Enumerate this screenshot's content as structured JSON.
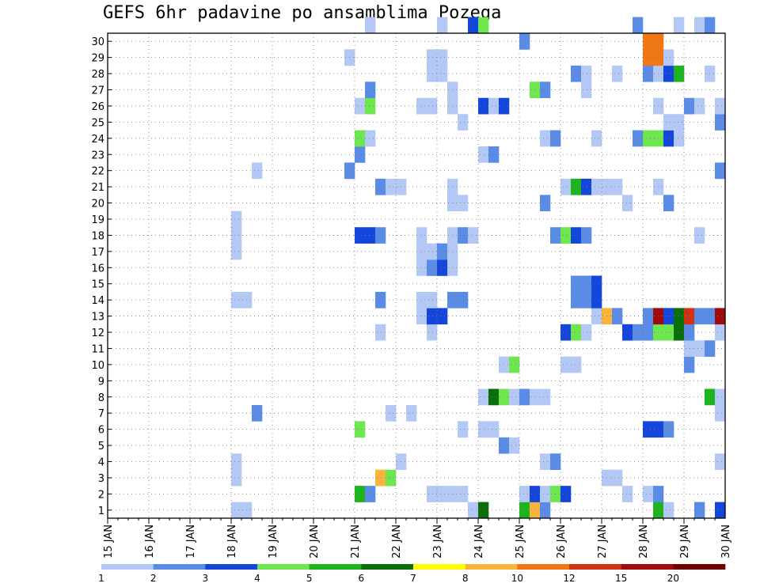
{
  "chart_data": {
    "type": "heatmap",
    "title": "GEFS 6hr padavine po ansamblima Pozega",
    "xlabel": "",
    "ylabel": "",
    "x_tick_labels": [
      "15 JAN",
      "16 JAN",
      "17 JAN",
      "18 JAN",
      "19 JAN",
      "20 JAN",
      "21 JAN",
      "22 JAN",
      "23 JAN",
      "24 JAN",
      "25 JAN",
      "26 JAN",
      "27 JAN",
      "28 JAN",
      "29 JAN",
      "30 JAN"
    ],
    "y_tick_labels": [
      "1",
      "2",
      "3",
      "4",
      "5",
      "6",
      "7",
      "8",
      "9",
      "10",
      "11",
      "12",
      "13",
      "14",
      "15",
      "16",
      "17",
      "18",
      "19",
      "20",
      "21",
      "22",
      "23",
      "24",
      "25",
      "26",
      "27",
      "28",
      "29",
      "30"
    ],
    "grid": true,
    "legend_position": "bottom",
    "colorbar": {
      "labels": [
        "1",
        "2",
        "3",
        "4",
        "5",
        "6",
        "7",
        "8",
        "10",
        "12",
        "15",
        "20"
      ],
      "colors": [
        "#b4c8f5",
        "#5a8ce6",
        "#1446dc",
        "#6ee650",
        "#1eb41e",
        "#0a6e0a",
        "#ffff00",
        "#fab43c",
        "#f07814",
        "#d23214",
        "#a00a0a",
        "#6e0000"
      ]
    },
    "cells": [
      {
        "x": "18 JAN 00Z",
        "member": 0,
        "level": 1
      },
      {
        "x": "18 JAN 06Z",
        "member": 0,
        "level": 1
      },
      {
        "x": "23 JAN 18Z",
        "member": 0,
        "level": 1
      },
      {
        "x": "24 JAN 00Z",
        "member": 0,
        "level": 6
      },
      {
        "x": "25 JAN 00Z",
        "member": 0,
        "level": 5
      },
      {
        "x": "25 JAN 06Z",
        "member": 0,
        "level": 8
      },
      {
        "x": "25 JAN 12Z",
        "member": 0,
        "level": 2
      },
      {
        "x": "28 JAN 06Z",
        "member": 0,
        "level": 5
      },
      {
        "x": "28 JAN 12Z",
        "member": 0,
        "level": 1
      },
      {
        "x": "29 JAN 06Z",
        "member": 0,
        "level": 2
      },
      {
        "x": "29 JAN 18Z",
        "member": 0,
        "level": 3
      },
      {
        "x": "21 JAN 00Z",
        "member": 1,
        "level": 5
      },
      {
        "x": "21 JAN 06Z",
        "member": 1,
        "level": 2
      },
      {
        "x": "22 JAN 18Z",
        "member": 1,
        "level": 1
      },
      {
        "x": "23 JAN 00Z",
        "member": 1,
        "level": 1
      },
      {
        "x": "23 JAN 06Z",
        "member": 1,
        "level": 1
      },
      {
        "x": "23 JAN 12Z",
        "member": 1,
        "level": 1
      },
      {
        "x": "25 JAN 00Z",
        "member": 1,
        "level": 1
      },
      {
        "x": "25 JAN 06Z",
        "member": 1,
        "level": 3
      },
      {
        "x": "25 JAN 12Z",
        "member": 1,
        "level": 1
      },
      {
        "x": "25 JAN 18Z",
        "member": 1,
        "level": 4
      },
      {
        "x": "26 JAN 00Z",
        "member": 1,
        "level": 3
      },
      {
        "x": "27 JAN 12Z",
        "member": 1,
        "level": 1
      },
      {
        "x": "28 JAN 00Z",
        "member": 1,
        "level": 1
      },
      {
        "x": "28 JAN 06Z",
        "member": 1,
        "level": 2
      },
      {
        "x": "18 JAN 00Z",
        "member": 2,
        "level": 1
      },
      {
        "x": "21 JAN 12Z",
        "member": 2,
        "level": 8
      },
      {
        "x": "21 JAN 18Z",
        "member": 2,
        "level": 4
      },
      {
        "x": "27 JAN 00Z",
        "member": 2,
        "level": 1
      },
      {
        "x": "27 JAN 06Z",
        "member": 2,
        "level": 1
      },
      {
        "x": "18 JAN 00Z",
        "member": 3,
        "level": 1
      },
      {
        "x": "22 JAN 00Z",
        "member": 3,
        "level": 1
      },
      {
        "x": "25 JAN 12Z",
        "member": 3,
        "level": 1
      },
      {
        "x": "25 JAN 18Z",
        "member": 3,
        "level": 2
      },
      {
        "x": "29 JAN 18Z",
        "member": 3,
        "level": 1
      },
      {
        "x": "24 JAN 12Z",
        "member": 4,
        "level": 2
      },
      {
        "x": "24 JAN 18Z",
        "member": 4,
        "level": 1
      },
      {
        "x": "21 JAN 00Z",
        "member": 5,
        "level": 4
      },
      {
        "x": "23 JAN 12Z",
        "member": 5,
        "level": 1
      },
      {
        "x": "24 JAN 00Z",
        "member": 5,
        "level": 1
      },
      {
        "x": "24 JAN 06Z",
        "member": 5,
        "level": 1
      },
      {
        "x": "28 JAN 00Z",
        "member": 5,
        "level": 3
      },
      {
        "x": "28 JAN 06Z",
        "member": 5,
        "level": 3
      },
      {
        "x": "28 JAN 12Z",
        "member": 5,
        "level": 2
      },
      {
        "x": "18 JAN 12Z",
        "member": 6,
        "level": 2
      },
      {
        "x": "21 JAN 18Z",
        "member": 6,
        "level": 1
      },
      {
        "x": "22 JAN 06Z",
        "member": 6,
        "level": 1
      },
      {
        "x": "29 JAN 18Z",
        "member": 6,
        "level": 1
      },
      {
        "x": "24 JAN 00Z",
        "member": 7,
        "level": 1
      },
      {
        "x": "24 JAN 06Z",
        "member": 7,
        "level": 6
      },
      {
        "x": "24 JAN 12Z",
        "member": 7,
        "level": 4
      },
      {
        "x": "24 JAN 18Z",
        "member": 7,
        "level": 1
      },
      {
        "x": "25 JAN 00Z",
        "member": 7,
        "level": 2
      },
      {
        "x": "25 JAN 06Z",
        "member": 7,
        "level": 1
      },
      {
        "x": "25 JAN 12Z",
        "member": 7,
        "level": 1
      },
      {
        "x": "29 JAN 12Z",
        "member": 7,
        "level": 5
      },
      {
        "x": "29 JAN 18Z",
        "member": 7,
        "level": 1
      },
      {
        "x": "24 JAN 12Z",
        "member": 9,
        "level": 1
      },
      {
        "x": "24 JAN 18Z",
        "member": 9,
        "level": 4
      },
      {
        "x": "26 JAN 00Z",
        "member": 9,
        "level": 1
      },
      {
        "x": "26 JAN 06Z",
        "member": 9,
        "level": 1
      },
      {
        "x": "29 JAN 00Z",
        "member": 9,
        "level": 2
      },
      {
        "x": "29 JAN 00Z",
        "member": 10,
        "level": 1
      },
      {
        "x": "29 JAN 06Z",
        "member": 10,
        "level": 1
      },
      {
        "x": "29 JAN 12Z",
        "member": 10,
        "level": 2
      },
      {
        "x": "21 JAN 12Z",
        "member": 11,
        "level": 1
      },
      {
        "x": "22 JAN 18Z",
        "member": 11,
        "level": 1
      },
      {
        "x": "26 JAN 00Z",
        "member": 11,
        "level": 3
      },
      {
        "x": "26 JAN 06Z",
        "member": 11,
        "level": 4
      },
      {
        "x": "26 JAN 12Z",
        "member": 11,
        "level": 1
      },
      {
        "x": "27 JAN 12Z",
        "member": 11,
        "level": 3
      },
      {
        "x": "27 JAN 18Z",
        "member": 11,
        "level": 2
      },
      {
        "x": "28 JAN 00Z",
        "member": 11,
        "level": 2
      },
      {
        "x": "28 JAN 06Z",
        "member": 11,
        "level": 4
      },
      {
        "x": "28 JAN 12Z",
        "member": 11,
        "level": 4
      },
      {
        "x": "28 JAN 18Z",
        "member": 11,
        "level": 6
      },
      {
        "x": "29 JAN 00Z",
        "member": 11,
        "level": 2
      },
      {
        "x": "29 JAN 18Z",
        "member": 11,
        "level": 1
      },
      {
        "x": "22 JAN 12Z",
        "member": 12,
        "level": 1
      },
      {
        "x": "22 JAN 18Z",
        "member": 12,
        "level": 3
      },
      {
        "x": "23 JAN 00Z",
        "member": 12,
        "level": 3
      },
      {
        "x": "26 JAN 18Z",
        "member": 12,
        "level": 1
      },
      {
        "x": "27 JAN 00Z",
        "member": 12,
        "level": 8
      },
      {
        "x": "27 JAN 06Z",
        "member": 12,
        "level": 2
      },
      {
        "x": "28 JAN 00Z",
        "member": 12,
        "level": 2
      },
      {
        "x": "28 JAN 06Z",
        "member": 12,
        "level": 11
      },
      {
        "x": "28 JAN 12Z",
        "member": 12,
        "level": 3
      },
      {
        "x": "28 JAN 18Z",
        "member": 12,
        "level": 6
      },
      {
        "x": "29 JAN 00Z",
        "member": 12,
        "level": 10
      },
      {
        "x": "29 JAN 06Z",
        "member": 12,
        "level": 2
      },
      {
        "x": "29 JAN 12Z",
        "member": 12,
        "level": 2
      },
      {
        "x": "29 JAN 18Z",
        "member": 12,
        "level": 11
      },
      {
        "x": "18 JAN 00Z",
        "member": 13,
        "level": 1
      },
      {
        "x": "18 JAN 06Z",
        "member": 13,
        "level": 1
      },
      {
        "x": "21 JAN 12Z",
        "member": 13,
        "level": 2
      },
      {
        "x": "22 JAN 12Z",
        "member": 13,
        "level": 1
      },
      {
        "x": "22 JAN 18Z",
        "member": 13,
        "level": 1
      },
      {
        "x": "23 JAN 06Z",
        "member": 13,
        "level": 2
      },
      {
        "x": "23 JAN 12Z",
        "member": 13,
        "level": 2
      },
      {
        "x": "26 JAN 06Z",
        "member": 13,
        "level": 2
      },
      {
        "x": "26 JAN 12Z",
        "member": 13,
        "level": 2
      },
      {
        "x": "26 JAN 18Z",
        "member": 13,
        "level": 3
      },
      {
        "x": "26 JAN 06Z",
        "member": 14,
        "level": 2
      },
      {
        "x": "26 JAN 12Z",
        "member": 14,
        "level": 2
      },
      {
        "x": "26 JAN 18Z",
        "member": 14,
        "level": 3
      },
      {
        "x": "22 JAN 12Z",
        "member": 15,
        "level": 1
      },
      {
        "x": "22 JAN 18Z",
        "member": 15,
        "level": 2
      },
      {
        "x": "23 JAN 00Z",
        "member": 15,
        "level": 3
      },
      {
        "x": "23 JAN 06Z",
        "member": 15,
        "level": 1
      },
      {
        "x": "18 JAN 00Z",
        "member": 16,
        "level": 1
      },
      {
        "x": "22 JAN 12Z",
        "member": 16,
        "level": 1
      },
      {
        "x": "22 JAN 18Z",
        "member": 16,
        "level": 1
      },
      {
        "x": "23 JAN 00Z",
        "member": 16,
        "level": 2
      },
      {
        "x": "23 JAN 06Z",
        "member": 16,
        "level": 1
      },
      {
        "x": "18 JAN 00Z",
        "member": 17,
        "level": 1
      },
      {
        "x": "21 JAN 00Z",
        "member": 17,
        "level": 3
      },
      {
        "x": "21 JAN 06Z",
        "member": 17,
        "level": 3
      },
      {
        "x": "21 JAN 12Z",
        "member": 17,
        "level": 2
      },
      {
        "x": "22 JAN 12Z",
        "member": 17,
        "level": 1
      },
      {
        "x": "23 JAN 06Z",
        "member": 17,
        "level": 1
      },
      {
        "x": "23 JAN 12Z",
        "member": 17,
        "level": 2
      },
      {
        "x": "23 JAN 18Z",
        "member": 17,
        "level": 1
      },
      {
        "x": "25 JAN 18Z",
        "member": 17,
        "level": 2
      },
      {
        "x": "26 JAN 00Z",
        "member": 17,
        "level": 4
      },
      {
        "x": "26 JAN 06Z",
        "member": 17,
        "level": 3
      },
      {
        "x": "26 JAN 12Z",
        "member": 17,
        "level": 2
      },
      {
        "x": "29 JAN 06Z",
        "member": 17,
        "level": 1
      },
      {
        "x": "18 JAN 00Z",
        "member": 18,
        "level": 1
      },
      {
        "x": "23 JAN 06Z",
        "member": 19,
        "level": 1
      },
      {
        "x": "23 JAN 12Z",
        "member": 19,
        "level": 1
      },
      {
        "x": "25 JAN 12Z",
        "member": 19,
        "level": 2
      },
      {
        "x": "27 JAN 12Z",
        "member": 19,
        "level": 1
      },
      {
        "x": "28 JAN 12Z",
        "member": 19,
        "level": 2
      },
      {
        "x": "21 JAN 12Z",
        "member": 20,
        "level": 2
      },
      {
        "x": "21 JAN 18Z",
        "member": 20,
        "level": 1
      },
      {
        "x": "22 JAN 00Z",
        "member": 20,
        "level": 1
      },
      {
        "x": "23 JAN 06Z",
        "member": 20,
        "level": 1
      },
      {
        "x": "26 JAN 00Z",
        "member": 20,
        "level": 1
      },
      {
        "x": "26 JAN 06Z",
        "member": 20,
        "level": 5
      },
      {
        "x": "26 JAN 12Z",
        "member": 20,
        "level": 3
      },
      {
        "x": "26 JAN 18Z",
        "member": 20,
        "level": 1
      },
      {
        "x": "27 JAN 00Z",
        "member": 20,
        "level": 1
      },
      {
        "x": "27 JAN 06Z",
        "member": 20,
        "level": 1
      },
      {
        "x": "28 JAN 06Z",
        "member": 20,
        "level": 1
      },
      {
        "x": "18 JAN 12Z",
        "member": 21,
        "level": 1
      },
      {
        "x": "20 JAN 18Z",
        "member": 21,
        "level": 2
      },
      {
        "x": "29 JAN 18Z",
        "member": 21,
        "level": 2
      },
      {
        "x": "21 JAN 00Z",
        "member": 22,
        "level": 2
      },
      {
        "x": "24 JAN 00Z",
        "member": 22,
        "level": 1
      },
      {
        "x": "24 JAN 06Z",
        "member": 22,
        "level": 2
      },
      {
        "x": "21 JAN 00Z",
        "member": 23,
        "level": 4
      },
      {
        "x": "21 JAN 06Z",
        "member": 23,
        "level": 1
      },
      {
        "x": "25 JAN 12Z",
        "member": 23,
        "level": 1
      },
      {
        "x": "25 JAN 18Z",
        "member": 23,
        "level": 2
      },
      {
        "x": "26 JAN 18Z",
        "member": 23,
        "level": 1
      },
      {
        "x": "27 JAN 18Z",
        "member": 23,
        "level": 2
      },
      {
        "x": "28 JAN 00Z",
        "member": 23,
        "level": 4
      },
      {
        "x": "28 JAN 06Z",
        "member": 23,
        "level": 4
      },
      {
        "x": "28 JAN 12Z",
        "member": 23,
        "level": 3
      },
      {
        "x": "28 JAN 18Z",
        "member": 23,
        "level": 1
      },
      {
        "x": "23 JAN 12Z",
        "member": 24,
        "level": 1
      },
      {
        "x": "28 JAN 12Z",
        "member": 24,
        "level": 1
      },
      {
        "x": "28 JAN 18Z",
        "member": 24,
        "level": 1
      },
      {
        "x": "29 JAN 18Z",
        "member": 24,
        "level": 2
      },
      {
        "x": "21 JAN 00Z",
        "member": 25,
        "level": 1
      },
      {
        "x": "21 JAN 06Z",
        "member": 25,
        "level": 4
      },
      {
        "x": "22 JAN 12Z",
        "member": 25,
        "level": 1
      },
      {
        "x": "22 JAN 18Z",
        "member": 25,
        "level": 1
      },
      {
        "x": "23 JAN 06Z",
        "member": 25,
        "level": 1
      },
      {
        "x": "24 JAN 00Z",
        "member": 25,
        "level": 3
      },
      {
        "x": "24 JAN 06Z",
        "member": 25,
        "level": 1
      },
      {
        "x": "24 JAN 12Z",
        "member": 25,
        "level": 3
      },
      {
        "x": "28 JAN 06Z",
        "member": 25,
        "level": 1
      },
      {
        "x": "29 JAN 00Z",
        "member": 25,
        "level": 2
      },
      {
        "x": "29 JAN 06Z",
        "member": 25,
        "level": 1
      },
      {
        "x": "29 JAN 18Z",
        "member": 25,
        "level": 1
      },
      {
        "x": "21 JAN 06Z",
        "member": 26,
        "level": 2
      },
      {
        "x": "23 JAN 06Z",
        "member": 26,
        "level": 1
      },
      {
        "x": "25 JAN 06Z",
        "member": 26,
        "level": 4
      },
      {
        "x": "25 JAN 12Z",
        "member": 26,
        "level": 2
      },
      {
        "x": "26 JAN 12Z",
        "member": 26,
        "level": 1
      },
      {
        "x": "22 JAN 18Z",
        "member": 27,
        "level": 1
      },
      {
        "x": "23 JAN 00Z",
        "member": 27,
        "level": 1
      },
      {
        "x": "26 JAN 06Z",
        "member": 27,
        "level": 2
      },
      {
        "x": "26 JAN 12Z",
        "member": 27,
        "level": 1
      },
      {
        "x": "27 JAN 06Z",
        "member": 27,
        "level": 1
      },
      {
        "x": "28 JAN 00Z",
        "member": 27,
        "level": 2
      },
      {
        "x": "28 JAN 06Z",
        "member": 27,
        "level": 1
      },
      {
        "x": "28 JAN 12Z",
        "member": 27,
        "level": 3
      },
      {
        "x": "28 JAN 18Z",
        "member": 27,
        "level": 5
      },
      {
        "x": "29 JAN 12Z",
        "member": 27,
        "level": 1
      },
      {
        "x": "20 JAN 18Z",
        "member": 28,
        "level": 1
      },
      {
        "x": "22 JAN 18Z",
        "member": 28,
        "level": 1
      },
      {
        "x": "23 JAN 00Z",
        "member": 28,
        "level": 1
      },
      {
        "x": "28 JAN 00Z",
        "member": 28,
        "level": 9
      },
      {
        "x": "28 JAN 06Z",
        "member": 28,
        "level": 9
      },
      {
        "x": "28 JAN 12Z",
        "member": 28,
        "level": 1
      },
      {
        "x": "25 JAN 00Z",
        "member": 29,
        "level": 2
      },
      {
        "x": "28 JAN 00Z",
        "member": 29,
        "level": 9
      },
      {
        "x": "28 JAN 06Z",
        "member": 29,
        "level": 9
      },
      {
        "x": "21 JAN 06Z",
        "member": 30,
        "level": 1
      },
      {
        "x": "23 JAN 00Z",
        "member": 30,
        "level": 1
      },
      {
        "x": "23 JAN 18Z",
        "member": 30,
        "level": 3
      },
      {
        "x": "24 JAN 00Z",
        "member": 30,
        "level": 4
      },
      {
        "x": "27 JAN 18Z",
        "member": 30,
        "level": 2
      },
      {
        "x": "28 JAN 18Z",
        "member": 30,
        "level": 1
      },
      {
        "x": "29 JAN 06Z",
        "member": 30,
        "level": 1
      },
      {
        "x": "29 JAN 12Z",
        "member": 30,
        "level": 2
      }
    ]
  }
}
